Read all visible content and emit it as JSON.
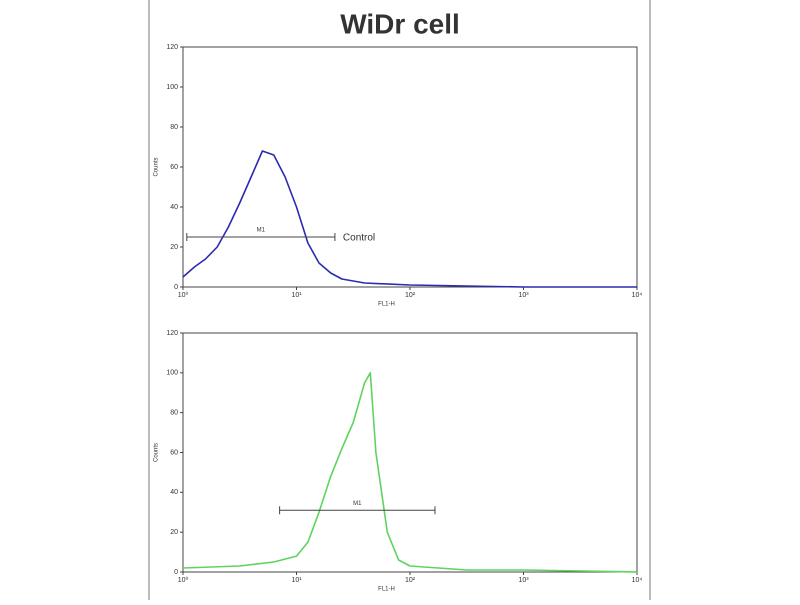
{
  "chart_data": [
    {
      "type": "line",
      "title": "WiDr cell",
      "xlabel": "FL1-H",
      "ylabel": "Counts",
      "xscale": "log",
      "xlim": [
        1,
        10000
      ],
      "xticks": [
        {
          "value": 1,
          "label": "10⁰"
        },
        {
          "value": 10,
          "label": "10¹"
        },
        {
          "value": 100,
          "label": "10²"
        },
        {
          "value": 1000,
          "label": "10³"
        },
        {
          "value": 10000,
          "label": "10⁴"
        }
      ],
      "ylim": [
        0,
        120
      ],
      "yticks": [
        0,
        20,
        40,
        60,
        80,
        100,
        120
      ],
      "x": [
        1,
        1.26,
        1.58,
        2,
        2.51,
        3.16,
        3.98,
        5.01,
        6.31,
        7.94,
        10,
        12.6,
        15.8,
        20,
        25.1,
        39.8,
        100,
        1000,
        10000
      ],
      "series": [
        {
          "color": "#2b2bb0",
          "values": [
            5,
            10,
            14,
            20,
            30,
            42,
            55,
            68,
            66,
            55,
            40,
            22,
            12,
            7,
            4,
            2,
            1,
            0,
            0
          ]
        }
      ],
      "gates": [
        {
          "label": "M1",
          "x": [
            1.08,
            21.8
          ],
          "y": 25,
          "annotation": "Control"
        }
      ]
    },
    {
      "type": "line",
      "xlabel": "FL1-H",
      "ylabel": "Counts",
      "xscale": "log",
      "xlim": [
        1,
        10000
      ],
      "xticks": [
        {
          "value": 1,
          "label": "10⁰"
        },
        {
          "value": 10,
          "label": "10¹"
        },
        {
          "value": 100,
          "label": "10²"
        },
        {
          "value": 1000,
          "label": "10³"
        },
        {
          "value": 10000,
          "label": "10⁴"
        }
      ],
      "ylim": [
        0,
        120
      ],
      "yticks": [
        0,
        20,
        40,
        60,
        80,
        100,
        120
      ],
      "x": [
        1,
        3.16,
        6.31,
        10,
        12.6,
        15.8,
        20,
        25.1,
        31.6,
        39.8,
        44.7,
        50.1,
        63.1,
        79.4,
        100,
        316,
        1000,
        10000
      ],
      "series": [
        {
          "color": "#5fd35f",
          "values": [
            2,
            3,
            5,
            8,
            15,
            30,
            48,
            62,
            75,
            95,
            100,
            60,
            20,
            6,
            3,
            1,
            1,
            0
          ]
        }
      ],
      "gates": [
        {
          "label": "M1",
          "x": [
            7.1,
            166
          ],
          "y": 31
        }
      ]
    }
  ]
}
